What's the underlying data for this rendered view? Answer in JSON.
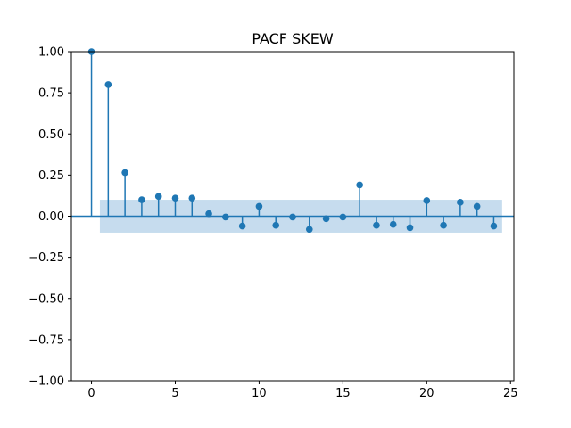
{
  "chart_data": {
    "type": "stem",
    "title": "PACF SKEW",
    "xlabel": "",
    "ylabel": "",
    "xlim": [
      -1.2,
      25.2
    ],
    "ylim": [
      -1.0,
      1.0
    ],
    "xticks": [
      0,
      5,
      10,
      15,
      20,
      25
    ],
    "xtick_labels": [
      "0",
      "5",
      "10",
      "15",
      "20",
      "25"
    ],
    "yticks": [
      1.0,
      0.75,
      0.5,
      0.25,
      0.0,
      -0.25,
      -0.5,
      -0.75,
      -1.0
    ],
    "ytick_labels": [
      "1.00",
      "0.75",
      "0.50",
      "0.25",
      "0.00",
      "−0.25",
      "−0.50",
      "−0.75",
      "−1.00"
    ],
    "grid": false,
    "confidence_band": {
      "x_start": 0.5,
      "x_end": 24.5,
      "upper": 0.1,
      "lower": -0.1,
      "color": "#c6dcee"
    },
    "color": "#1f77b4",
    "lags": [
      0,
      1,
      2,
      3,
      4,
      5,
      6,
      7,
      8,
      9,
      10,
      11,
      12,
      13,
      14,
      15,
      16,
      17,
      18,
      19,
      20,
      21,
      22,
      23,
      24
    ],
    "values": [
      1.0,
      0.8,
      0.265,
      0.1,
      0.12,
      0.11,
      0.11,
      0.015,
      -0.005,
      -0.06,
      0.06,
      -0.055,
      -0.005,
      -0.08,
      -0.015,
      -0.005,
      0.19,
      -0.055,
      -0.05,
      -0.07,
      0.095,
      -0.055,
      0.085,
      0.06,
      -0.06
    ]
  }
}
